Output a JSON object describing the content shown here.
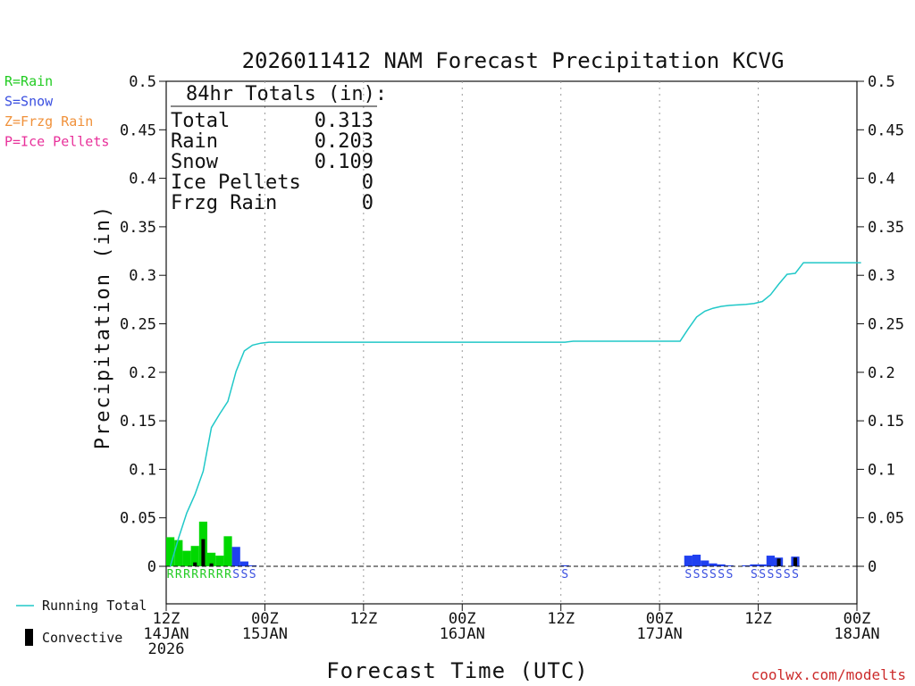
{
  "chart_data": {
    "type": "bar+line",
    "title": "2026011412 NAM Forecast Precipitation KCVG",
    "ylabel": "Precipitation (in)",
    "xlabel": "Forecast Time (UTC)",
    "ylim": [
      -0.04,
      0.5
    ],
    "yticks": [
      {
        "v": 0.5,
        "label": "0.5"
      },
      {
        "v": 0.45,
        "label": "0.45"
      },
      {
        "v": 0.4,
        "label": "0.4"
      },
      {
        "v": 0.35,
        "label": "0.35"
      },
      {
        "v": 0.3,
        "label": "0.3"
      },
      {
        "v": 0.25,
        "label": "0.25"
      },
      {
        "v": 0.2,
        "label": "0.2"
      },
      {
        "v": 0.15,
        "label": "0.15"
      },
      {
        "v": 0.1,
        "label": "0.1"
      },
      {
        "v": 0.05,
        "label": "0.05"
      },
      {
        "v": 0,
        "label": "0"
      }
    ],
    "xlim_hours": [
      0,
      84
    ],
    "xticks": [
      {
        "h": 0,
        "lines": [
          "12Z",
          "14JAN",
          "2026"
        ]
      },
      {
        "h": 12,
        "lines": [
          "00Z",
          "15JAN"
        ]
      },
      {
        "h": 24,
        "lines": [
          "12Z"
        ]
      },
      {
        "h": 36,
        "lines": [
          "00Z",
          "16JAN"
        ]
      },
      {
        "h": 48,
        "lines": [
          "12Z"
        ]
      },
      {
        "h": 60,
        "lines": [
          "00Z",
          "17JAN"
        ]
      },
      {
        "h": 72,
        "lines": [
          "12Z"
        ]
      },
      {
        "h": 84,
        "lines": [
          "00Z",
          "18JAN"
        ]
      }
    ],
    "gridlines_hours": [
      12,
      24,
      36,
      48,
      60,
      72
    ],
    "totals": {
      "header": "84hr Totals (in):",
      "rows": [
        {
          "label": "Total",
          "value": "0.313"
        },
        {
          "label": "Rain",
          "value": "0.203"
        },
        {
          "label": "Snow",
          "value": "0.109"
        },
        {
          "label": "Ice Pellets",
          "value": "0"
        },
        {
          "label": "Frzg Rain",
          "value": "0"
        }
      ]
    },
    "ptype_legend": [
      {
        "text": "R=Rain",
        "color": "#22cc22"
      },
      {
        "text": "S=Snow",
        "color": "#3a4fe0"
      },
      {
        "text": "Z=Frzg Rain",
        "color": "#f0913a"
      },
      {
        "text": "P=Ice Pellets",
        "color": "#e8309a"
      }
    ],
    "bottom_legend": {
      "running_total": "Running Total",
      "convective": "Convective"
    },
    "colors": {
      "rain": "#00d800",
      "snow": "#2040f0",
      "convective": "#000000",
      "running": "#20c8c8"
    },
    "bars": [
      {
        "h": 0,
        "v": 0.03,
        "type": "R"
      },
      {
        "h": 1,
        "v": 0.027,
        "type": "R"
      },
      {
        "h": 2,
        "v": 0.016,
        "type": "R"
      },
      {
        "h": 3,
        "v": 0.021,
        "type": "R"
      },
      {
        "h": 4,
        "v": 0.046,
        "type": "R"
      },
      {
        "h": 5,
        "v": 0.014,
        "type": "R"
      },
      {
        "h": 6,
        "v": 0.011,
        "type": "R"
      },
      {
        "h": 7,
        "v": 0.031,
        "type": "R"
      },
      {
        "h": 8,
        "v": 0.02,
        "type": "S"
      },
      {
        "h": 9,
        "v": 0.005,
        "type": "S"
      },
      {
        "h": 10,
        "v": 0.001,
        "type": "S"
      },
      {
        "h": 48,
        "v": 0.001,
        "type": "S"
      },
      {
        "h": 63,
        "v": 0.011,
        "type": "S"
      },
      {
        "h": 64,
        "v": 0.012,
        "type": "S"
      },
      {
        "h": 65,
        "v": 0.006,
        "type": "S"
      },
      {
        "h": 66,
        "v": 0.003,
        "type": "S"
      },
      {
        "h": 67,
        "v": 0.002,
        "type": "S"
      },
      {
        "h": 68,
        "v": 0.001,
        "type": "S"
      },
      {
        "h": 70,
        "v": 0.001,
        "type": "S"
      },
      {
        "h": 71,
        "v": 0.002,
        "type": "S"
      },
      {
        "h": 72,
        "v": 0.002,
        "type": "S"
      },
      {
        "h": 73,
        "v": 0.011,
        "type": "S"
      },
      {
        "h": 74,
        "v": 0.009,
        "type": "S"
      },
      {
        "h": 76,
        "v": 0.01,
        "type": "S"
      }
    ],
    "convective": [
      {
        "h": 3,
        "v": 0.004
      },
      {
        "h": 4,
        "v": 0.028
      },
      {
        "h": 5,
        "v": 0.003
      },
      {
        "h": 74,
        "v": 0.008
      },
      {
        "h": 76,
        "v": 0.009
      }
    ],
    "running_total": [
      [
        0,
        0.0
      ],
      [
        1,
        0.029
      ],
      [
        2,
        0.055
      ],
      [
        3,
        0.074
      ],
      [
        4,
        0.098
      ],
      [
        5,
        0.143
      ],
      [
        6,
        0.157
      ],
      [
        7,
        0.17
      ],
      [
        8,
        0.201
      ],
      [
        9,
        0.222
      ],
      [
        10,
        0.228
      ],
      [
        11,
        0.23
      ],
      [
        12,
        0.231
      ],
      [
        48,
        0.231
      ],
      [
        49,
        0.232
      ],
      [
        62,
        0.232
      ],
      [
        63,
        0.245
      ],
      [
        64,
        0.257
      ],
      [
        65,
        0.263
      ],
      [
        66,
        0.266
      ],
      [
        67,
        0.268
      ],
      [
        68,
        0.269
      ],
      [
        70,
        0.27
      ],
      [
        71,
        0.271
      ],
      [
        72,
        0.273
      ],
      [
        73,
        0.28
      ],
      [
        74,
        0.291
      ],
      [
        75,
        0.301
      ],
      [
        76,
        0.302
      ],
      [
        77,
        0.313
      ],
      [
        84,
        0.313
      ]
    ],
    "ptype_strip": [
      {
        "h": 0,
        "c": "R"
      },
      {
        "h": 1,
        "c": "R"
      },
      {
        "h": 2,
        "c": "R"
      },
      {
        "h": 3,
        "c": "R"
      },
      {
        "h": 4,
        "c": "R"
      },
      {
        "h": 5,
        "c": "R"
      },
      {
        "h": 6,
        "c": "R"
      },
      {
        "h": 7,
        "c": "R"
      },
      {
        "h": 8,
        "c": "S"
      },
      {
        "h": 9,
        "c": "S"
      },
      {
        "h": 10,
        "c": "S"
      },
      {
        "h": 48,
        "c": "S"
      },
      {
        "h": 63,
        "c": "S"
      },
      {
        "h": 64,
        "c": "S"
      },
      {
        "h": 65,
        "c": "S"
      },
      {
        "h": 66,
        "c": "S"
      },
      {
        "h": 67,
        "c": "S"
      },
      {
        "h": 68,
        "c": "S"
      },
      {
        "h": 71,
        "c": "S"
      },
      {
        "h": 72,
        "c": "S"
      },
      {
        "h": 73,
        "c": "S"
      },
      {
        "h": 74,
        "c": "S"
      },
      {
        "h": 75,
        "c": "S"
      },
      {
        "h": 76,
        "c": "S"
      }
    ]
  },
  "credit": "coolwx.com/modelts"
}
